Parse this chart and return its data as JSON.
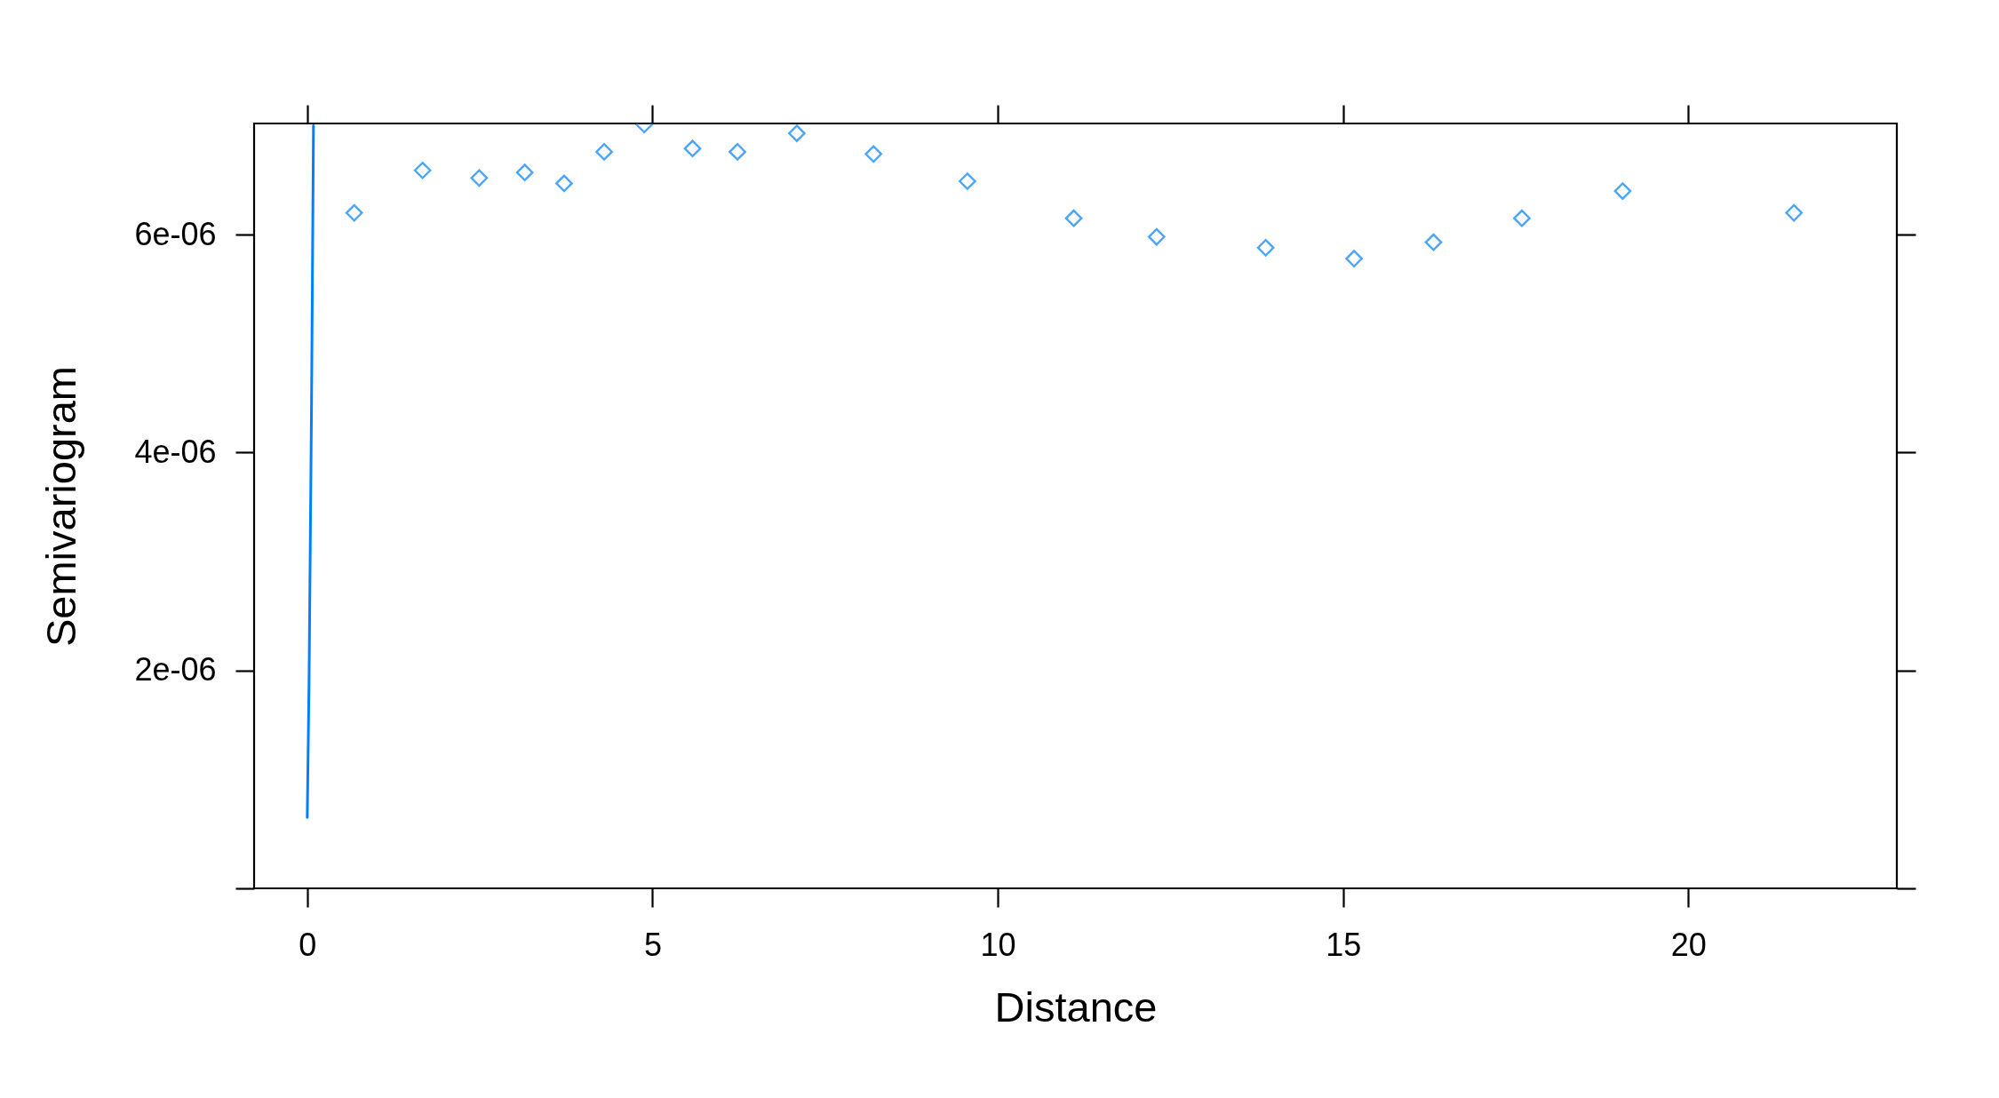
{
  "chart_data": {
    "type": "scatter",
    "xlabel": "Distance",
    "ylabel": "Semivariogram",
    "xlim": [
      -0.77,
      23.02
    ],
    "xticks": [
      0,
      5,
      10,
      15,
      20
    ],
    "ylim": [
      0,
      7.02e-06
    ],
    "yticks": [
      {
        "value": 0,
        "label": null
      },
      {
        "value": 2e-06,
        "label": "2e-06"
      },
      {
        "value": 4e-06,
        "label": "4e-06"
      },
      {
        "value": 6e-06,
        "label": "6e-06"
      }
    ],
    "series": [
      {
        "color": "#0080ff",
        "marker": "diamond",
        "x": [
          0.68,
          1.67,
          2.49,
          3.15,
          3.72,
          4.3,
          4.88,
          5.58,
          6.23,
          7.09,
          8.2,
          9.56,
          11.1,
          12.3,
          13.88,
          15.16,
          16.31,
          17.59,
          19.05,
          21.53
        ],
        "values": [
          6.2e-06,
          6.59e-06,
          6.52e-06,
          6.57e-06,
          6.47e-06,
          6.76e-06,
          7.01e-06,
          6.79e-06,
          6.76e-06,
          6.93e-06,
          6.74e-06,
          6.49e-06,
          6.15e-06,
          5.98e-06,
          5.88e-06,
          5.78e-06,
          5.93e-06,
          6.15e-06,
          6.4e-06,
          6.2e-06
        ]
      },
      {
        "type": "line",
        "color": "#0080ff",
        "marker": "none",
        "x": [
          0,
          0.026,
          0.062,
          0.09
        ],
        "values": [
          6.5e-07,
          1.9e-06,
          4.47e-06,
          7e-06
        ]
      }
    ]
  }
}
